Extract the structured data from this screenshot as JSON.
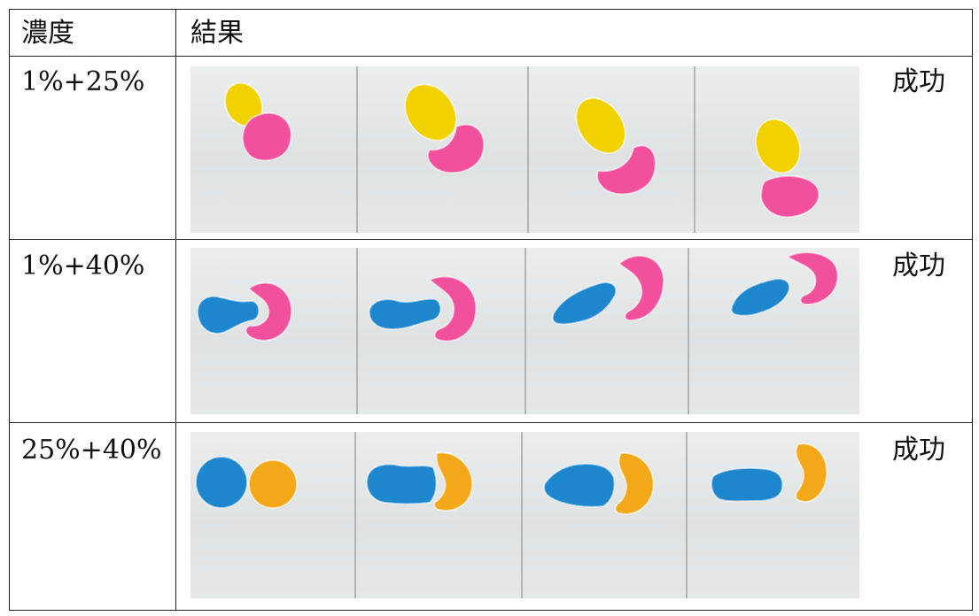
{
  "table": {
    "header": {
      "concentration": "濃度",
      "result": "結果"
    },
    "rows": [
      {
        "concentration": "1%+25%",
        "outcome": "成功",
        "droplets": {
          "left_color": "#f1d200",
          "right_color": "#f0509c"
        }
      },
      {
        "concentration": "1%+40%",
        "outcome": "成功",
        "droplets": {
          "left_color": "#1e86cc",
          "right_color": "#f0509c"
        }
      },
      {
        "concentration": "25%+40%",
        "outcome": "成功",
        "droplets": {
          "left_color": "#1e86cc",
          "right_color": "#f2a818"
        }
      }
    ]
  },
  "colors": {
    "border": "#222222",
    "glass": "#e4e6e6"
  }
}
